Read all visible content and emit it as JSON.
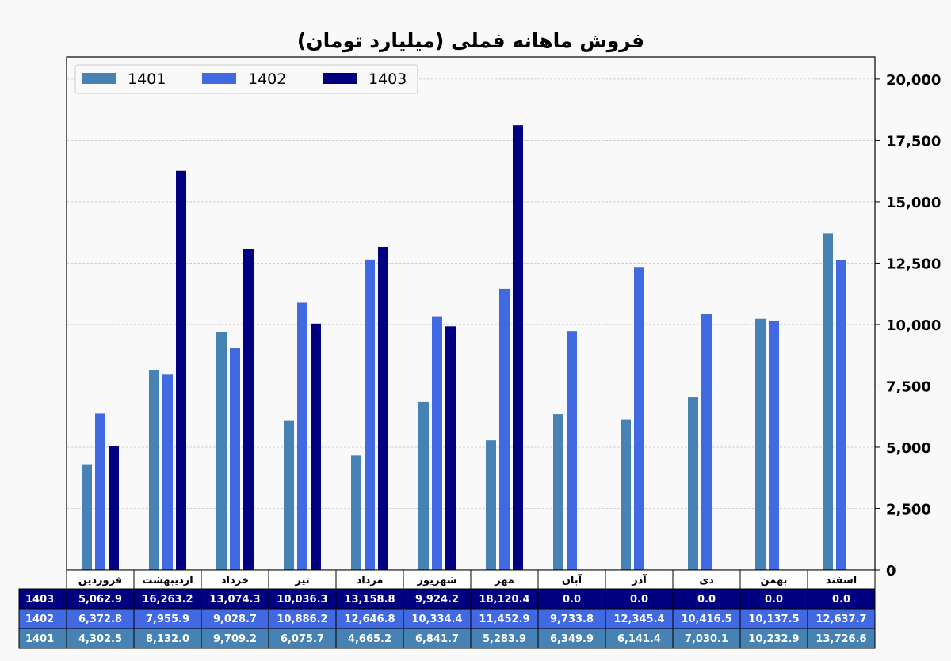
{
  "chart_data": {
    "type": "bar",
    "title": "فروش ماهانه فملی (میلیارد تومان)",
    "xlabel": "",
    "ylabel": "",
    "ylim": [
      0,
      20900
    ],
    "y_axis_position": "right",
    "yticks": [
      0,
      2500,
      5000,
      7500,
      10000,
      12500,
      15000,
      17500,
      20000
    ],
    "ytick_labels": [
      "0",
      "2,500",
      "5,000",
      "7,500",
      "10,000",
      "12,500",
      "15,000",
      "17,500",
      "20,000"
    ],
    "grid": "horizontal dashed",
    "legend_position": "top-left",
    "categories": [
      "فروردین",
      "اردیبهشت",
      "خرداد",
      "تیر",
      "مرداد",
      "شهریور",
      "مهر",
      "آبان",
      "آذر",
      "دی",
      "بهمن",
      "اسفند"
    ],
    "series": [
      {
        "name": "1401",
        "color": "#4682b4",
        "values": [
          4302.5,
          8132.0,
          9709.2,
          6075.7,
          4665.2,
          6841.7,
          5283.9,
          6349.9,
          6141.4,
          7030.1,
          10232.9,
          13726.6
        ],
        "labels": [
          "4,302.5",
          "8,132.0",
          "9,709.2",
          "6,075.7",
          "4,665.2",
          "6,841.7",
          "5,283.9",
          "6,349.9",
          "6,141.4",
          "7,030.1",
          "10,232.9",
          "13,726.6"
        ]
      },
      {
        "name": "1402",
        "color": "#4169e1",
        "values": [
          6372.8,
          7955.9,
          9028.7,
          10886.2,
          12646.8,
          10334.4,
          11452.9,
          9733.8,
          12345.4,
          10416.5,
          10137.5,
          12637.7
        ],
        "labels": [
          "6,372.8",
          "7,955.9",
          "9,028.7",
          "10,886.2",
          "12,646.8",
          "10,334.4",
          "11,452.9",
          "9,733.8",
          "12,345.4",
          "10,416.5",
          "10,137.5",
          "12,637.7"
        ]
      },
      {
        "name": "1403",
        "color": "#000080",
        "values": [
          5062.9,
          16263.2,
          13074.3,
          10036.3,
          13158.8,
          9924.2,
          18120.4,
          0.0,
          0.0,
          0.0,
          0.0,
          0.0
        ],
        "labels": [
          "5,062.9",
          "16,263.2",
          "13,074.3",
          "10,036.3",
          "13,158.8",
          "9,924.2",
          "18,120.4",
          "0.0",
          "0.0",
          "0.0",
          "0.0",
          "0.0"
        ]
      }
    ],
    "table_row_order": [
      "1403",
      "1402",
      "1401"
    ]
  }
}
